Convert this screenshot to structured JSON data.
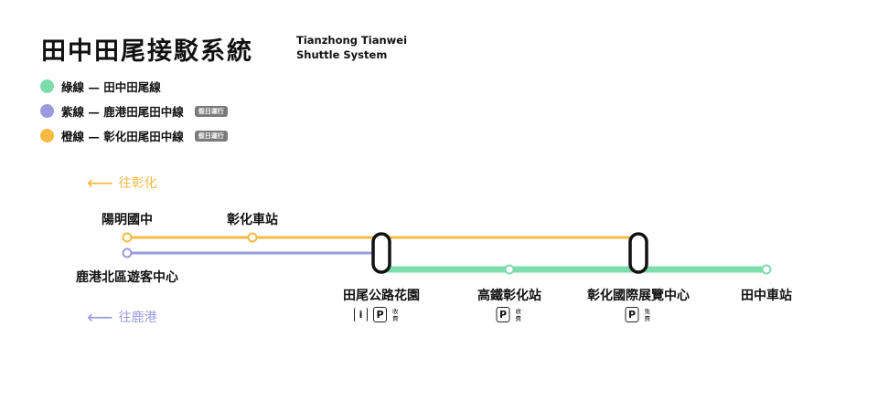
{
  "header": {
    "title": "田中田尾接駁系統",
    "subtitle_line1": "Tianzhong Tianwei",
    "subtitle_line2": "Shuttle System"
  },
  "legend": [
    {
      "label": "綠線 — 田中田尾線",
      "color": "#7ddcaa",
      "badge": ""
    },
    {
      "label": "紫線 — 鹿港田尾田中線",
      "color": "#9b9ade",
      "badge": "假日運行"
    },
    {
      "label": "橙線 — 彰化田尾田中線",
      "color": "#f5b944",
      "badge": "假日運行"
    }
  ],
  "directions": {
    "changhua": "往彰化",
    "lukang": "往鹿港"
  },
  "stations": {
    "yangming": "陽明國中",
    "changhua_station": "彰化車站",
    "lukang_north": "鹿港北區遊客中心",
    "tianwei": "田尾公路花園",
    "hsr": "高鐵彰化站",
    "expo": "彰化國際展覽中心",
    "tianzhong": "田中車站"
  },
  "facilities": {
    "info": "i",
    "parking": "P",
    "fee_paid": "收費",
    "fee_free": "免費"
  }
}
